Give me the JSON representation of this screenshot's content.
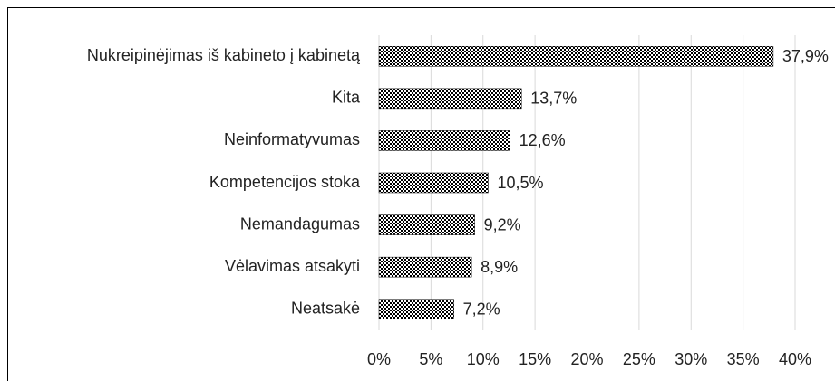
{
  "chart_data": {
    "type": "barh",
    "categories": [
      "Nukreipinėjimas iš kabineto į kabinetą",
      "Kita",
      "Neinformatyvumas",
      "Kompetencijos stoka",
      "Nemandagumas",
      "Vėlavimas atsakyti",
      "Neatsakė"
    ],
    "values": [
      37.9,
      13.7,
      12.6,
      10.5,
      9.2,
      8.9,
      7.2
    ],
    "value_labels": [
      "37,9%",
      "13,7%",
      "12,6%",
      "10,5%",
      "9,2%",
      "8,9%",
      "7,2%"
    ],
    "color": "#000000",
    "xlim": [
      0,
      40
    ],
    "xticks": [
      {
        "value": 0,
        "label": "0%"
      },
      {
        "value": 5,
        "label": "5%"
      },
      {
        "value": 10,
        "label": "10%"
      },
      {
        "value": 15,
        "label": "15%"
      },
      {
        "value": 20,
        "label": "20%"
      },
      {
        "value": 25,
        "label": "25%"
      },
      {
        "value": 30,
        "label": "30%"
      },
      {
        "value": 35,
        "label": "35%"
      },
      {
        "value": 40,
        "label": "40%"
      }
    ],
    "grid": true
  }
}
